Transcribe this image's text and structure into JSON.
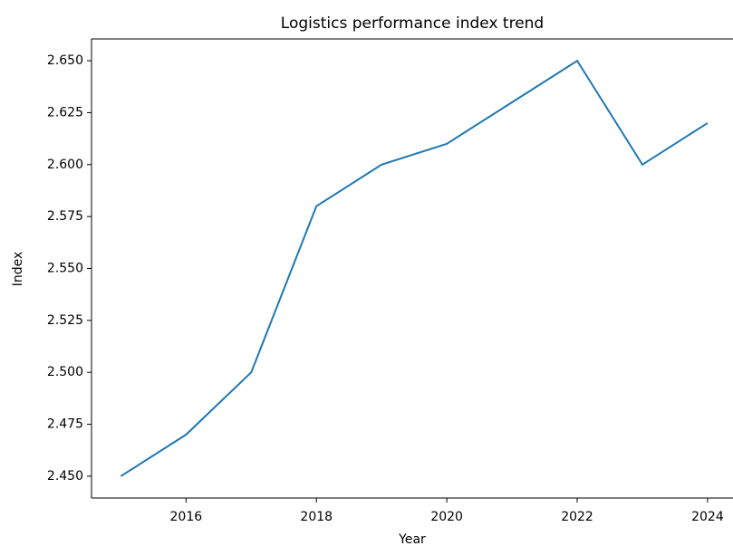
{
  "chart_data": {
    "type": "line",
    "title": "Logistics performance index trend",
    "x_label": "Year",
    "y_label": "Index",
    "x": [
      2015,
      2016,
      2017,
      2018,
      2019,
      2020,
      2021,
      2022,
      2023,
      2024
    ],
    "series": [
      {
        "name": "Index",
        "color": "#1f77b4",
        "values": [
          2.45,
          2.47,
          2.5,
          2.58,
          2.6,
          2.61,
          2.63,
          2.65,
          2.6,
          2.62
        ]
      }
    ],
    "xlim": [
      2014.55,
      2024.39
    ],
    "xticks": [
      2016,
      2018,
      2020,
      2022,
      2024
    ],
    "ylim": [
      2.4395,
      2.6605
    ],
    "yticks": [
      {
        "value": 2.45,
        "label": "2.450"
      },
      {
        "value": 2.475,
        "label": "2.475"
      },
      {
        "value": 2.5,
        "label": "2.500"
      },
      {
        "value": 2.525,
        "label": "2.525"
      },
      {
        "value": 2.55,
        "label": "2.550"
      },
      {
        "value": 2.575,
        "label": "2.575"
      },
      {
        "value": 2.6,
        "label": "2.600"
      },
      {
        "value": 2.625,
        "label": "2.625"
      },
      {
        "value": 2.65,
        "label": "2.650"
      }
    ],
    "grid": false
  }
}
